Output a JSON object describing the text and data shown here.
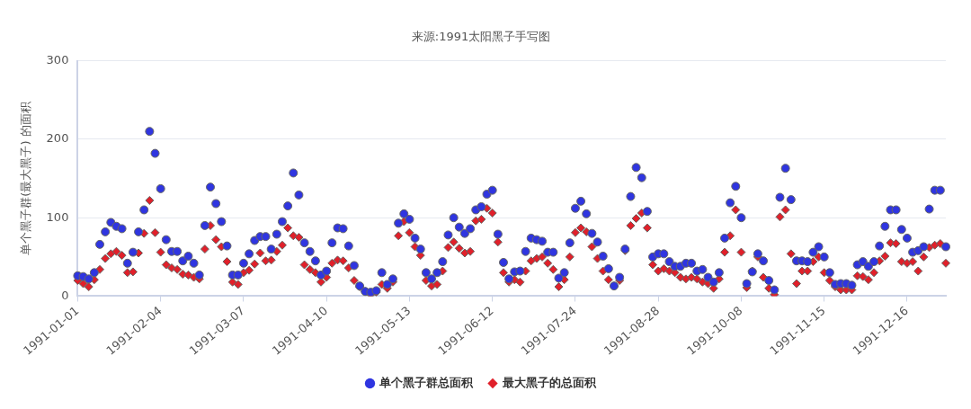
{
  "chart_data": {
    "type": "scatter",
    "title": "来源:1991太阳黑子手写图",
    "ylabel": "单个黑子群(最大黑子) 的面积",
    "categories": [
      "1991-01-01",
      null,
      null,
      null,
      null,
      null,
      null,
      null,
      null,
      null,
      null,
      null,
      null,
      null,
      null,
      "1991-02-04",
      null,
      null,
      null,
      null,
      null,
      null,
      null,
      null,
      null,
      null,
      null,
      null,
      null,
      null,
      "1991-03-07",
      null,
      null,
      null,
      null,
      null,
      null,
      null,
      null,
      null,
      null,
      null,
      null,
      null,
      null,
      "1991-04-10",
      null,
      null,
      null,
      null,
      null,
      null,
      null,
      null,
      null,
      null,
      null,
      null,
      null,
      null,
      "1991-05-13",
      null,
      null,
      null,
      null,
      null,
      null,
      null,
      null,
      null,
      null,
      null,
      null,
      null,
      null,
      "1991-06-12",
      null,
      null,
      null,
      null,
      null,
      null,
      null,
      null,
      null,
      null,
      null,
      null,
      null,
      null,
      "1991-07-24",
      null,
      null,
      null,
      null,
      null,
      null,
      null,
      null,
      null,
      null,
      null,
      null,
      null,
      null,
      "1991-08-28",
      null,
      null,
      null,
      null,
      null,
      null,
      null,
      null,
      null,
      null,
      null,
      null,
      null,
      null,
      "1991-10-08",
      null,
      null,
      null,
      null,
      null,
      null,
      null,
      null,
      null,
      null,
      null,
      null,
      null,
      null,
      "1991-11-15",
      null,
      null,
      null,
      null,
      null,
      null,
      null,
      null,
      null,
      null,
      null,
      null,
      null,
      null,
      "1991-12-16",
      null,
      null,
      null,
      null,
      null,
      null,
      null
    ],
    "series": [
      {
        "name": "单个黑子群总面积",
        "color": "#2f35e0",
        "marker": "circle",
        "values": [
          26,
          25,
          22,
          30,
          66,
          82,
          94,
          89,
          86,
          42,
          56,
          82,
          110,
          210,
          182,
          137,
          72,
          57,
          57,
          45,
          51,
          42,
          27,
          90,
          139,
          118,
          95,
          64,
          27,
          27,
          42,
          54,
          71,
          76,
          76,
          60,
          79,
          95,
          115,
          157,
          129,
          68,
          57,
          45,
          27,
          32,
          68,
          87,
          86,
          64,
          39,
          13,
          6,
          5,
          7,
          30,
          15,
          22,
          93,
          105,
          98,
          74,
          60,
          30,
          22,
          30,
          44,
          78,
          100,
          88,
          80,
          86,
          110,
          114,
          130,
          135,
          79,
          43,
          22,
          31,
          32,
          57,
          74,
          72,
          70,
          56,
          56,
          23,
          30,
          68,
          112,
          121,
          105,
          80,
          69,
          51,
          35,
          13,
          24,
          60,
          127,
          164,
          151,
          108,
          50,
          54,
          54,
          44,
          38,
          38,
          42,
          42,
          32,
          34,
          24,
          18,
          30,
          74,
          119,
          140,
          100,
          16,
          31,
          54,
          45,
          20,
          8,
          126,
          163,
          123,
          45,
          45,
          44,
          56,
          63,
          50,
          30,
          15,
          16,
          16,
          14,
          40,
          44,
          38,
          44,
          64,
          89,
          110,
          110,
          85,
          74,
          56,
          58,
          63,
          111,
          135,
          135,
          63
        ]
      },
      {
        "name": "最大黑子的总面积",
        "color": "#e0202a",
        "marker": "diamond",
        "values": [
          20,
          16,
          12,
          21,
          34,
          48,
          54,
          57,
          52,
          30,
          31,
          55,
          80,
          122,
          81,
          56,
          40,
          36,
          34,
          28,
          27,
          24,
          22,
          60,
          90,
          72,
          63,
          44,
          18,
          15,
          30,
          33,
          41,
          55,
          45,
          46,
          57,
          65,
          87,
          77,
          75,
          40,
          34,
          30,
          18,
          24,
          42,
          46,
          45,
          36,
          20,
          12,
          6,
          2,
          5,
          15,
          10,
          18,
          77,
          95,
          81,
          63,
          52,
          20,
          13,
          15,
          32,
          62,
          69,
          61,
          55,
          57,
          96,
          98,
          112,
          106,
          69,
          30,
          18,
          21,
          18,
          32,
          45,
          48,
          50,
          42,
          34,
          12,
          21,
          50,
          81,
          87,
          82,
          63,
          48,
          32,
          21,
          13,
          20,
          58,
          90,
          99,
          106,
          87,
          40,
          32,
          35,
          32,
          30,
          24,
          22,
          24,
          22,
          18,
          16,
          10,
          22,
          56,
          77,
          110,
          56,
          11,
          32,
          50,
          24,
          10,
          2,
          101,
          110,
          54,
          16,
          32,
          32,
          44,
          50,
          30,
          20,
          12,
          8,
          8,
          8,
          26,
          25,
          21,
          30,
          45,
          51,
          68,
          67,
          44,
          42,
          44,
          32,
          50,
          62,
          65,
          67,
          42
        ]
      }
    ],
    "ylim": [
      0,
      300
    ],
    "yticks": [
      0,
      100,
      200,
      300
    ],
    "grid": "y",
    "legend": "bottom"
  }
}
